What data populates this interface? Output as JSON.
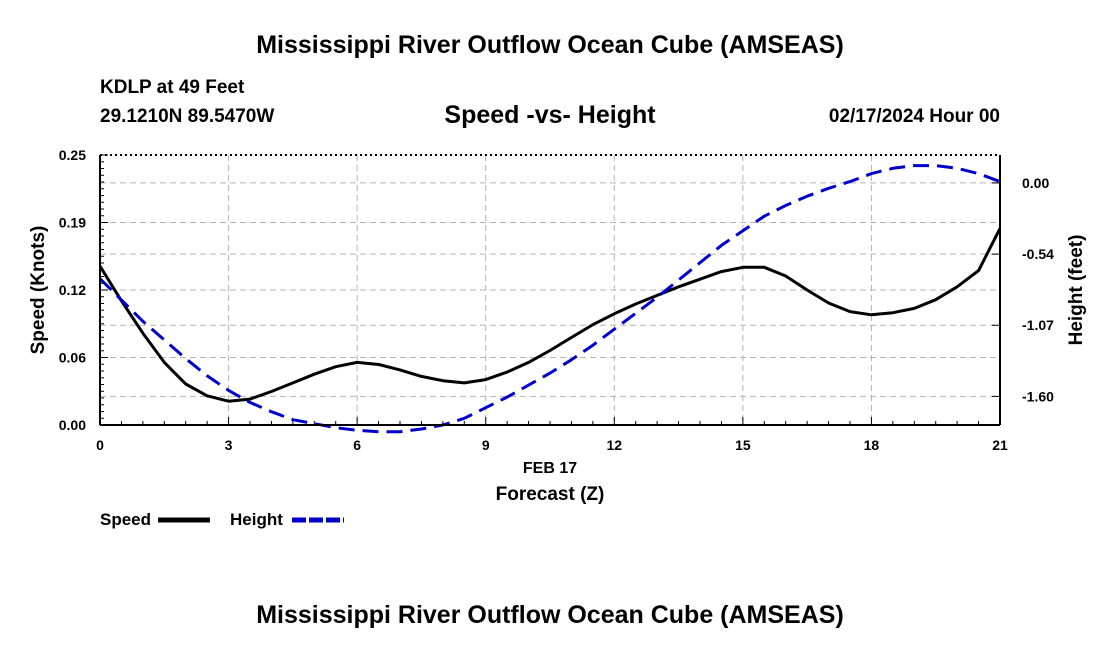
{
  "header": {
    "main_title": "Mississippi River Outflow Ocean Cube (AMSEAS)",
    "station": "KDLP at 49 Feet",
    "coords": "29.1210N  89.5470W",
    "subtitle": "Speed -vs- Height",
    "datetime": "02/17/2024 Hour 00"
  },
  "footer": {
    "repeat_title": "Mississippi River Outflow Ocean Cube (AMSEAS)"
  },
  "chart_data": {
    "type": "line",
    "title": "Speed -vs- Height",
    "xlabel": "Forecast (Z)",
    "xlabel_date": "FEB 17",
    "ylabel": "Speed (Knots)",
    "ylabel_right": "Height (feet)",
    "xlim": [
      0,
      21
    ],
    "ylim": [
      0,
      0.25
    ],
    "ylim_right": [
      -1.82,
      0.21
    ],
    "x_ticks": [
      0,
      3,
      6,
      9,
      12,
      15,
      18,
      21
    ],
    "x_tick_labels": [
      "0",
      "3",
      "6",
      "9",
      "12",
      "15",
      "18",
      "21"
    ],
    "y_ticks": [
      0,
      0.0625,
      0.125,
      0.1875,
      0.25
    ],
    "y_tick_labels": [
      "0.00",
      "0.06",
      "0.12",
      "0.19",
      "0.25"
    ],
    "y_right_ticks": [
      0,
      -0.535,
      -1.07,
      -1.605
    ],
    "y_right_tick_labels": [
      "0.00",
      "-0.54",
      "-1.07",
      "-1.60"
    ],
    "grid": true,
    "colors": {
      "speed": "#000000",
      "height": "#0000cc",
      "grid": "#b4b4b4"
    },
    "series": [
      {
        "name": "Speed",
        "axis": "left",
        "x": [
          0,
          0.5,
          1,
          1.5,
          2,
          2.5,
          3,
          3.5,
          4,
          4.5,
          5,
          5.5,
          6,
          6.5,
          7,
          7.5,
          8,
          8.5,
          9,
          9.5,
          10,
          10.5,
          11,
          11.5,
          12,
          12.5,
          13,
          13.5,
          14,
          14.5,
          15,
          15.5,
          16,
          16.5,
          17,
          17.5,
          18,
          18.5,
          19,
          19.5,
          20,
          20.5,
          21
        ],
        "values": [
          0.147,
          0.115,
          0.085,
          0.058,
          0.038,
          0.027,
          0.022,
          0.024,
          0.031,
          0.039,
          0.047,
          0.054,
          0.058,
          0.056,
          0.051,
          0.045,
          0.041,
          0.039,
          0.042,
          0.049,
          0.058,
          0.069,
          0.081,
          0.093,
          0.103,
          0.112,
          0.12,
          0.128,
          0.135,
          0.142,
          0.146,
          0.146,
          0.138,
          0.125,
          0.113,
          0.105,
          0.102,
          0.104,
          0.108,
          0.116,
          0.128,
          0.143,
          0.182
        ]
      },
      {
        "name": "Height",
        "axis": "right",
        "x": [
          0,
          0.5,
          1,
          1.5,
          2,
          2.5,
          3,
          3.5,
          4,
          4.5,
          5,
          5.5,
          6,
          6.5,
          7,
          7.5,
          8,
          8.5,
          9,
          9.5,
          10,
          10.5,
          11,
          11.5,
          12,
          12.5,
          13,
          13.5,
          14,
          14.5,
          15,
          15.5,
          16,
          16.5,
          17,
          17.5,
          18,
          18.5,
          19,
          19.5,
          20,
          20.5,
          21
        ],
        "values": [
          -0.72,
          -0.88,
          -1.04,
          -1.18,
          -1.32,
          -1.45,
          -1.56,
          -1.65,
          -1.72,
          -1.78,
          -1.81,
          -1.84,
          -1.86,
          -1.87,
          -1.87,
          -1.85,
          -1.82,
          -1.77,
          -1.69,
          -1.61,
          -1.52,
          -1.43,
          -1.33,
          -1.22,
          -1.1,
          -0.98,
          -0.86,
          -0.73,
          -0.6,
          -0.47,
          -0.36,
          -0.25,
          -0.17,
          -0.1,
          -0.04,
          0.01,
          0.07,
          0.11,
          0.13,
          0.13,
          0.11,
          0.07,
          0.01
        ]
      }
    ],
    "legend": {
      "position": "bottom-left",
      "items": [
        {
          "label": "Speed",
          "series": "Speed"
        },
        {
          "label": "Height",
          "series": "Height"
        }
      ]
    }
  }
}
